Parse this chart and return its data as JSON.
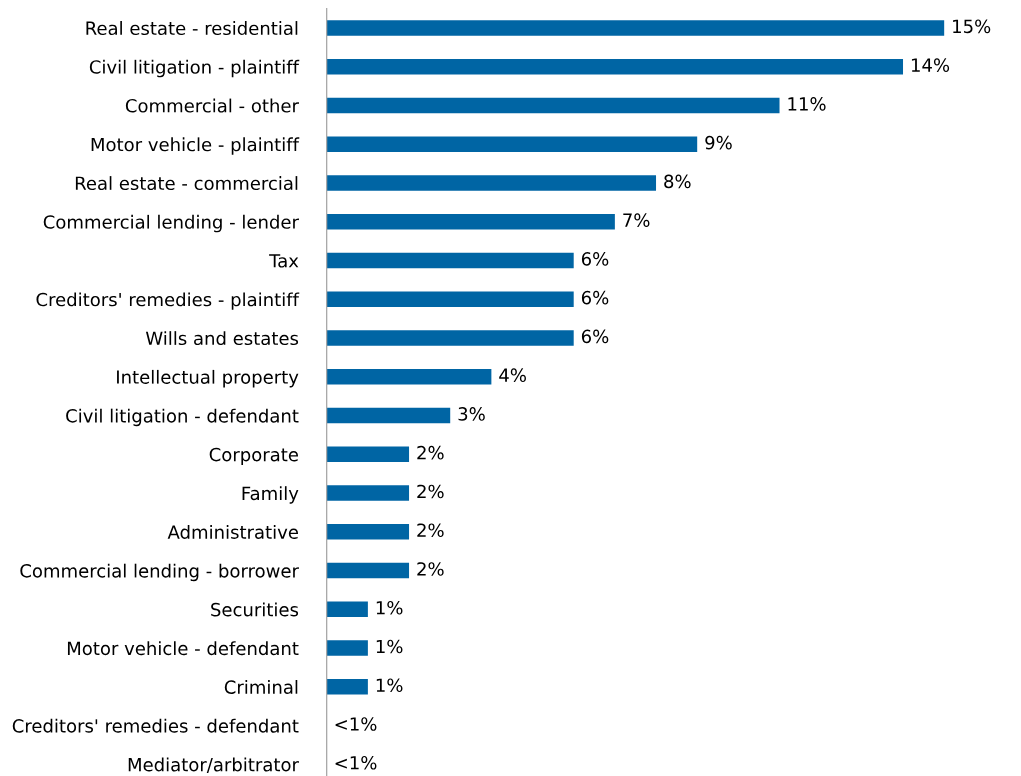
{
  "chart_data": {
    "type": "bar",
    "orientation": "horizontal",
    "categories": [
      "Real estate - residential",
      "Civil litigation - plaintiff",
      "Commercial - other",
      "Motor vehicle - plaintiff",
      "Real estate - commercial",
      "Commercial lending - lender",
      "Tax",
      "Creditors' remedies - plaintiff",
      "Wills and estates",
      "Intellectual property",
      "Civil litigation - defendant",
      "Corporate",
      "Family",
      "Administrative",
      "Commercial lending - borrower",
      "Securities",
      "Motor vehicle - defendant",
      "Criminal",
      "Creditors' remedies - defendant",
      "Mediator/arbitrator"
    ],
    "values": [
      15,
      14,
      11,
      9,
      8,
      7,
      6,
      6,
      6,
      4,
      3,
      2,
      2,
      2,
      2,
      1,
      1,
      1,
      0,
      0
    ],
    "value_labels": [
      "15%",
      "14%",
      "11%",
      "9%",
      "8%",
      "7%",
      "6%",
      "6%",
      "6%",
      "4%",
      "3%",
      "2%",
      "2%",
      "2%",
      "2%",
      "1%",
      "1%",
      "1%",
      "<1%",
      "<1%"
    ],
    "color": "#0065a4",
    "tick_labels": "y",
    "grid": false,
    "legend": false
  }
}
